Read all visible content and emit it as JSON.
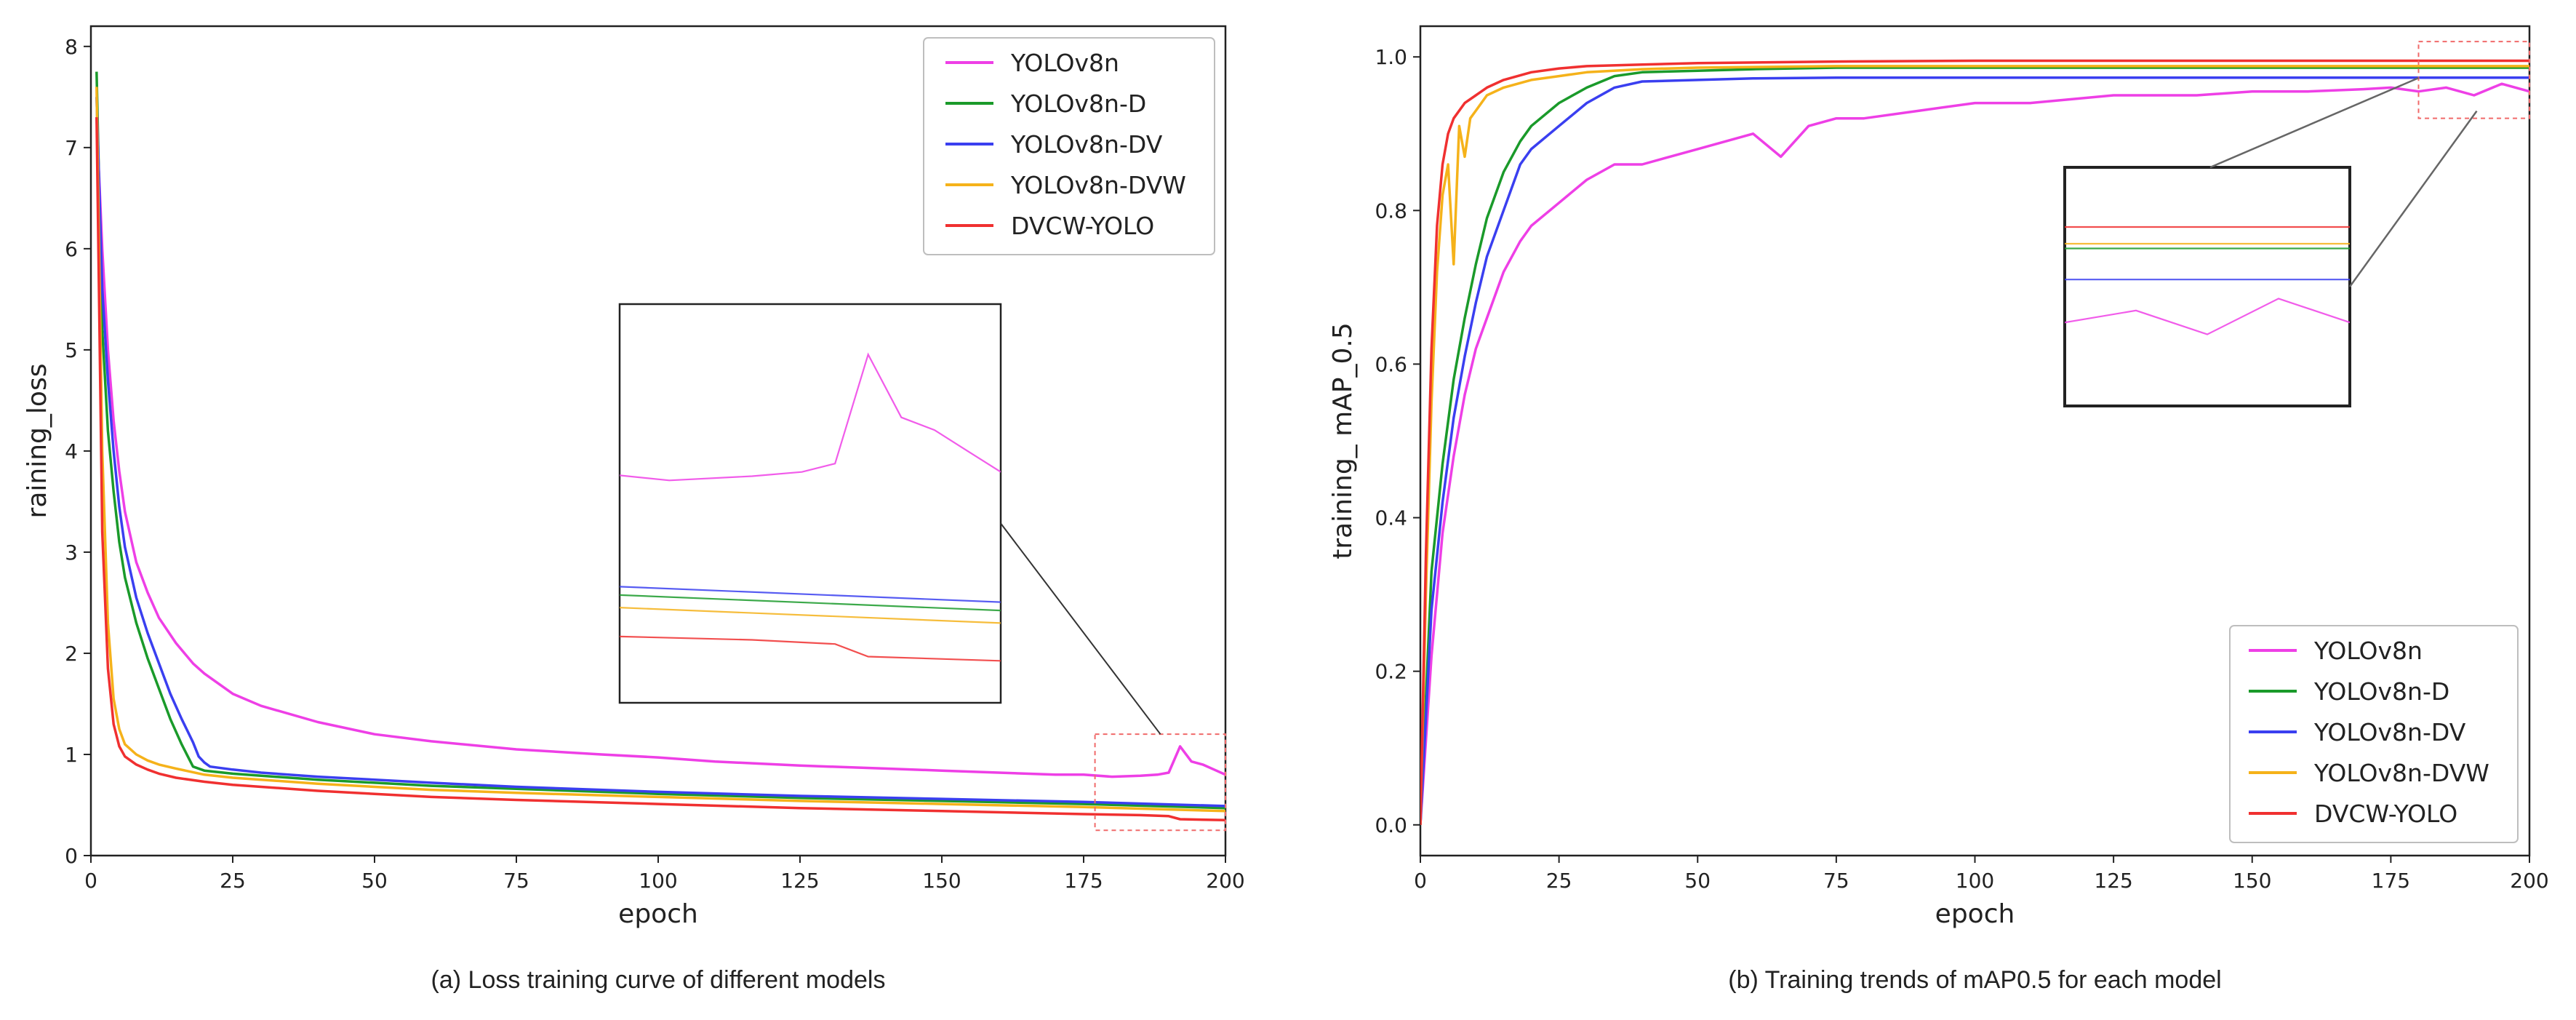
{
  "colors": {
    "YOLOv8n": "#ee3fe6",
    "YOLOv8n-D": "#1a9a2a",
    "YOLOv8n-DV": "#3a3ff0",
    "YOLOv8n-DVW": "#f5b21a",
    "DVCW-YOLO": "#f03030"
  },
  "chart_data": [
    {
      "type": "line",
      "caption": "(a) Loss training curve of different models",
      "xlabel": "epoch",
      "ylabel": "raining_loss",
      "xlim": [
        0,
        200
      ],
      "ylim": [
        0,
        8.2
      ],
      "xticks": [
        0,
        25,
        50,
        75,
        100,
        125,
        150,
        175,
        200
      ],
      "yticks": [
        0,
        1,
        2,
        3,
        4,
        5,
        6,
        7,
        8
      ],
      "legend_position": "top-right",
      "inset": {
        "x_range": [
          177,
          200
        ],
        "y_range": [
          0.25,
          1.2
        ],
        "placement": "center-right"
      },
      "series": [
        {
          "name": "YOLOv8n",
          "x": [
            1,
            2,
            3,
            4,
            5,
            6,
            8,
            10,
            12,
            15,
            18,
            20,
            25,
            30,
            40,
            50,
            60,
            75,
            90,
            100,
            110,
            125,
            140,
            150,
            160,
            170,
            175,
            180,
            185,
            188,
            190,
            192,
            194,
            196,
            198,
            200
          ],
          "values": [
            7.3,
            6.0,
            5.0,
            4.3,
            3.8,
            3.4,
            2.9,
            2.6,
            2.35,
            2.1,
            1.9,
            1.8,
            1.6,
            1.48,
            1.32,
            1.2,
            1.13,
            1.05,
            1.0,
            0.97,
            0.93,
            0.89,
            0.86,
            0.84,
            0.82,
            0.8,
            0.8,
            0.78,
            0.79,
            0.8,
            0.82,
            1.08,
            0.93,
            0.9,
            0.85,
            0.8
          ]
        },
        {
          "name": "YOLOv8n-D",
          "x": [
            1,
            2,
            3,
            4,
            5,
            6,
            8,
            10,
            12,
            14,
            16,
            18,
            20,
            25,
            30,
            40,
            50,
            60,
            75,
            100,
            125,
            150,
            175,
            200
          ],
          "values": [
            7.75,
            5.2,
            4.2,
            3.6,
            3.1,
            2.75,
            2.3,
            1.95,
            1.65,
            1.35,
            1.1,
            0.88,
            0.84,
            0.81,
            0.79,
            0.75,
            0.72,
            0.69,
            0.66,
            0.61,
            0.57,
            0.54,
            0.51,
            0.47
          ]
        },
        {
          "name": "YOLOv8n-DV",
          "x": [
            1,
            2,
            3,
            4,
            5,
            6,
            8,
            10,
            12,
            14,
            16,
            18,
            19,
            20,
            21,
            25,
            30,
            40,
            50,
            60,
            75,
            100,
            125,
            150,
            175,
            200
          ],
          "values": [
            7.5,
            5.6,
            4.7,
            4.0,
            3.45,
            3.05,
            2.55,
            2.2,
            1.9,
            1.6,
            1.35,
            1.12,
            0.98,
            0.92,
            0.88,
            0.85,
            0.82,
            0.78,
            0.75,
            0.72,
            0.68,
            0.63,
            0.59,
            0.56,
            0.53,
            0.49
          ]
        },
        {
          "name": "YOLOv8n-DVW",
          "x": [
            1,
            2,
            3,
            4,
            5,
            6,
            8,
            10,
            12,
            15,
            20,
            25,
            30,
            40,
            50,
            60,
            75,
            100,
            125,
            150,
            175,
            200
          ],
          "values": [
            7.6,
            4.0,
            2.3,
            1.55,
            1.25,
            1.1,
            1.0,
            0.94,
            0.9,
            0.86,
            0.8,
            0.77,
            0.75,
            0.71,
            0.68,
            0.65,
            0.62,
            0.58,
            0.54,
            0.51,
            0.48,
            0.44
          ]
        },
        {
          "name": "DVCW-YOLO",
          "x": [
            1,
            2,
            3,
            4,
            5,
            6,
            8,
            10,
            12,
            15,
            20,
            25,
            30,
            40,
            50,
            60,
            75,
            100,
            125,
            150,
            175,
            185,
            190,
            192,
            200
          ],
          "values": [
            7.3,
            3.2,
            1.85,
            1.3,
            1.08,
            0.98,
            0.9,
            0.85,
            0.81,
            0.77,
            0.73,
            0.7,
            0.68,
            0.64,
            0.61,
            0.58,
            0.55,
            0.51,
            0.47,
            0.44,
            0.41,
            0.4,
            0.39,
            0.36,
            0.35
          ]
        }
      ]
    },
    {
      "type": "line",
      "caption": "(b) Training trends of mAP0.5 for each model",
      "xlabel": "epoch",
      "ylabel": "training_ mAP_0.5",
      "xlim": [
        0,
        200
      ],
      "ylim": [
        -0.04,
        1.04
      ],
      "xticks": [
        0,
        25,
        50,
        75,
        100,
        125,
        150,
        175,
        200
      ],
      "yticks": [
        0.0,
        0.2,
        0.4,
        0.6,
        0.8,
        1.0
      ],
      "legend_position": "bottom-right",
      "inset": {
        "x_range": [
          180,
          200
        ],
        "y_range": [
          0.92,
          1.02
        ],
        "placement": "center-right"
      },
      "series": [
        {
          "name": "YOLOv8n",
          "x": [
            0,
            2,
            4,
            6,
            8,
            10,
            12,
            15,
            18,
            20,
            25,
            30,
            35,
            40,
            45,
            50,
            60,
            65,
            70,
            75,
            80,
            90,
            100,
            110,
            125,
            140,
            150,
            160,
            170,
            175,
            180,
            185,
            190,
            195,
            200
          ],
          "values": [
            0.0,
            0.22,
            0.38,
            0.48,
            0.56,
            0.62,
            0.66,
            0.72,
            0.76,
            0.78,
            0.81,
            0.84,
            0.86,
            0.86,
            0.87,
            0.88,
            0.9,
            0.87,
            0.91,
            0.92,
            0.92,
            0.93,
            0.94,
            0.94,
            0.95,
            0.95,
            0.955,
            0.955,
            0.958,
            0.96,
            0.955,
            0.96,
            0.95,
            0.965,
            0.955
          ]
        },
        {
          "name": "YOLOv8n-D",
          "x": [
            0,
            2,
            4,
            6,
            8,
            10,
            12,
            15,
            18,
            20,
            25,
            30,
            35,
            40,
            50,
            60,
            75,
            100,
            125,
            150,
            175,
            200
          ],
          "values": [
            0.0,
            0.33,
            0.47,
            0.58,
            0.66,
            0.73,
            0.79,
            0.85,
            0.89,
            0.91,
            0.94,
            0.96,
            0.975,
            0.98,
            0.982,
            0.984,
            0.986,
            0.986,
            0.986,
            0.986,
            0.986,
            0.986
          ]
        },
        {
          "name": "YOLOv8n-DV",
          "x": [
            0,
            2,
            4,
            6,
            8,
            10,
            12,
            15,
            18,
            20,
            25,
            30,
            35,
            40,
            50,
            60,
            75,
            100,
            125,
            150,
            175,
            200
          ],
          "values": [
            0.0,
            0.28,
            0.42,
            0.53,
            0.61,
            0.68,
            0.74,
            0.8,
            0.86,
            0.88,
            0.91,
            0.94,
            0.96,
            0.968,
            0.97,
            0.972,
            0.973,
            0.973,
            0.973,
            0.973,
            0.973,
            0.973
          ]
        },
        {
          "name": "YOLOv8n-DVW",
          "x": [
            0,
            1,
            2,
            3,
            4,
            5,
            6,
            7,
            8,
            9,
            10,
            12,
            15,
            20,
            25,
            30,
            40,
            50,
            75,
            100,
            125,
            150,
            175,
            200
          ],
          "values": [
            0.0,
            0.3,
            0.55,
            0.72,
            0.82,
            0.86,
            0.73,
            0.91,
            0.87,
            0.92,
            0.93,
            0.95,
            0.96,
            0.97,
            0.975,
            0.98,
            0.984,
            0.986,
            0.988,
            0.988,
            0.988,
            0.988,
            0.988,
            0.988
          ]
        },
        {
          "name": "DVCW-YOLO",
          "x": [
            0,
            1,
            2,
            3,
            4,
            5,
            6,
            8,
            10,
            12,
            15,
            20,
            25,
            30,
            40,
            50,
            75,
            100,
            125,
            150,
            175,
            200
          ],
          "values": [
            0.0,
            0.35,
            0.62,
            0.78,
            0.86,
            0.9,
            0.92,
            0.94,
            0.95,
            0.96,
            0.97,
            0.98,
            0.985,
            0.988,
            0.99,
            0.992,
            0.994,
            0.995,
            0.995,
            0.995,
            0.995,
            0.995
          ]
        }
      ]
    }
  ]
}
